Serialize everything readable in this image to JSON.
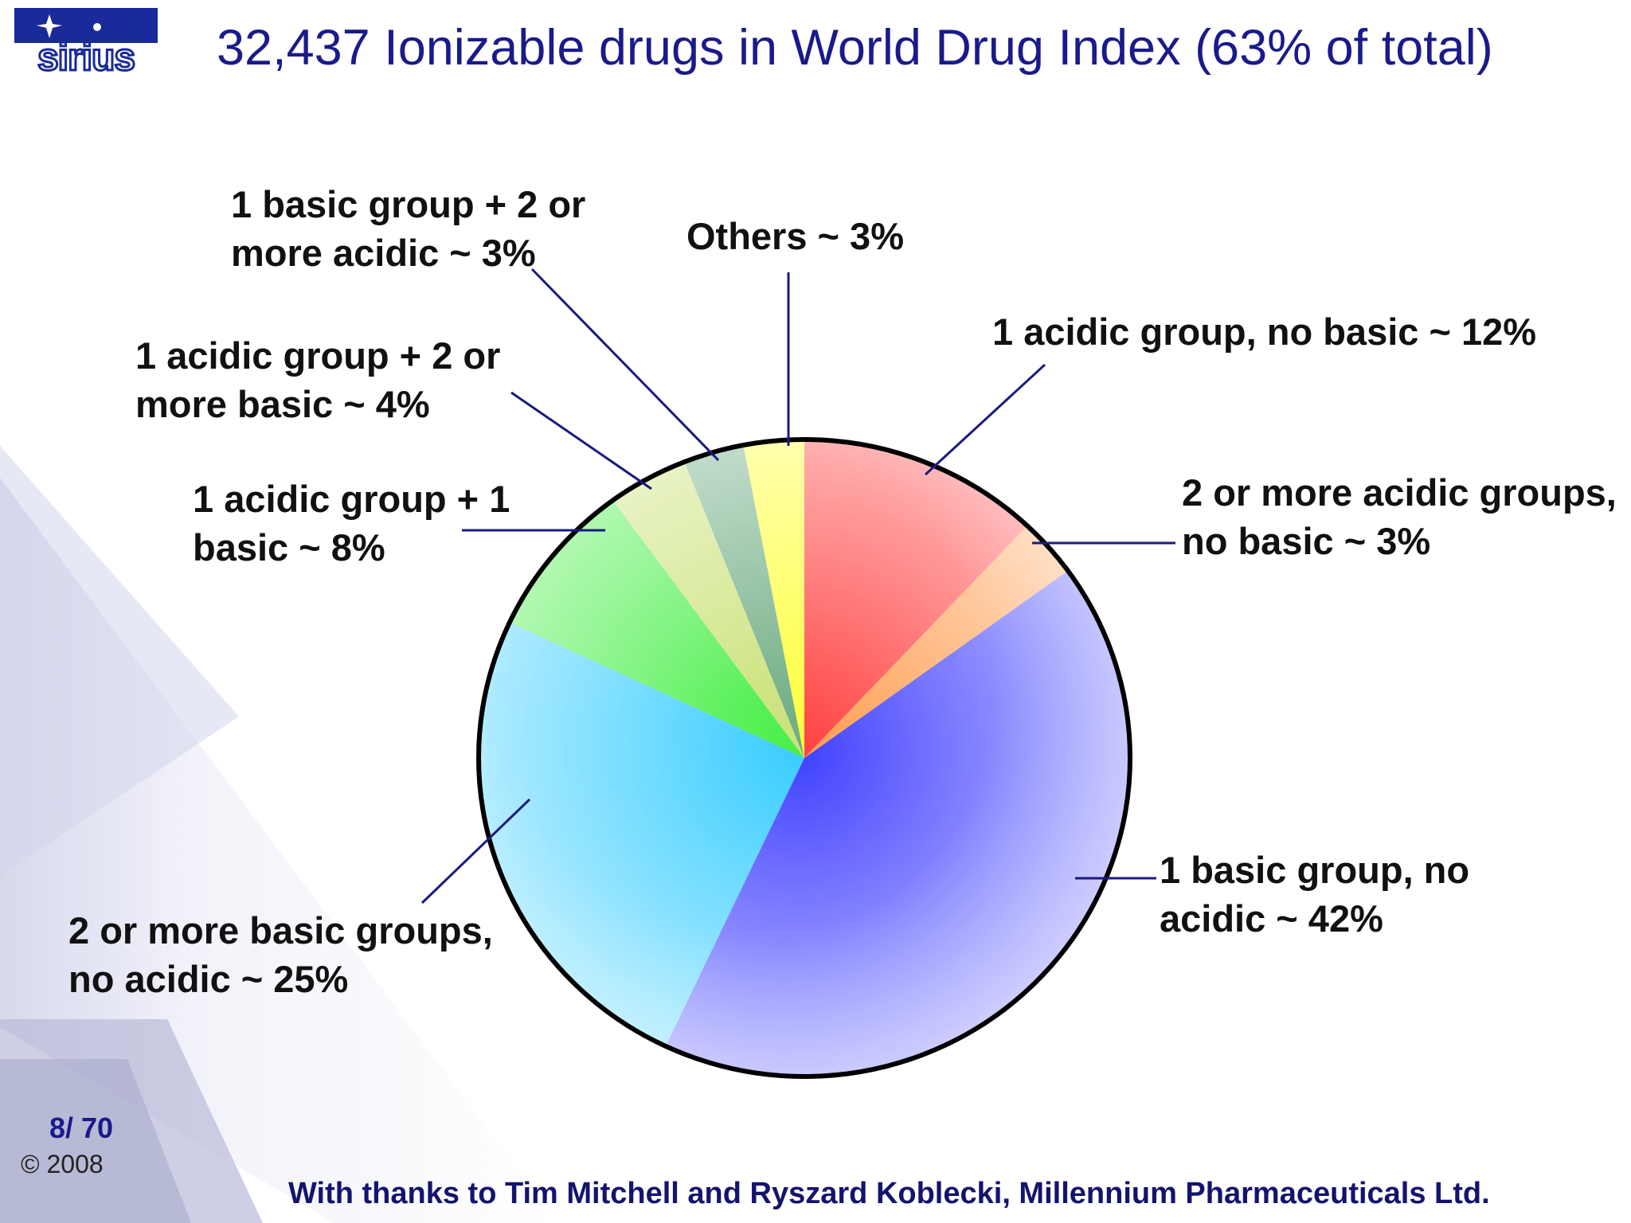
{
  "slide": {
    "title": "32,437 Ionizable drugs in World Drug Index (63% of total)",
    "logo_text": "sirius",
    "slide_number": "8/ 70",
    "copyright": "© 2008",
    "credits": "With thanks to Tim Mitchell and Ryszard Koblecki, Millennium Pharmaceuticals Ltd."
  },
  "colors": {
    "title": "#1a1a8c",
    "leader_line": "#1a1a80"
  },
  "chart_data": {
    "type": "pie",
    "start": "12 o'clock, clockwise",
    "slices": [
      {
        "label": "1 acidic group, no basic ~ 12%",
        "value": 12,
        "color": "#ff3b3b"
      },
      {
        "label": "2 or more acidic groups, no basic  ~ 3%",
        "value": 3,
        "color": "#ff9a4a"
      },
      {
        "label": "1 basic group, no acidic ~ 42%",
        "value": 42,
        "color": "#3c3cff"
      },
      {
        "label": "2 or more basic groups, no acidic ~ 25%",
        "value": 25,
        "color": "#33ccff"
      },
      {
        "label": "1 acidic group + 1 basic ~ 8%",
        "value": 8,
        "color": "#40ee40"
      },
      {
        "label": "1 acidic group + 2 or more basic ~ 4%",
        "value": 4,
        "color": "#c8e070"
      },
      {
        "label": "1 basic group + 2 or more acidic ~ 3%",
        "value": 3,
        "color": "#66a87c"
      },
      {
        "label": "Others ~ 3%",
        "value": 3,
        "color": "#ffff33"
      }
    ]
  }
}
